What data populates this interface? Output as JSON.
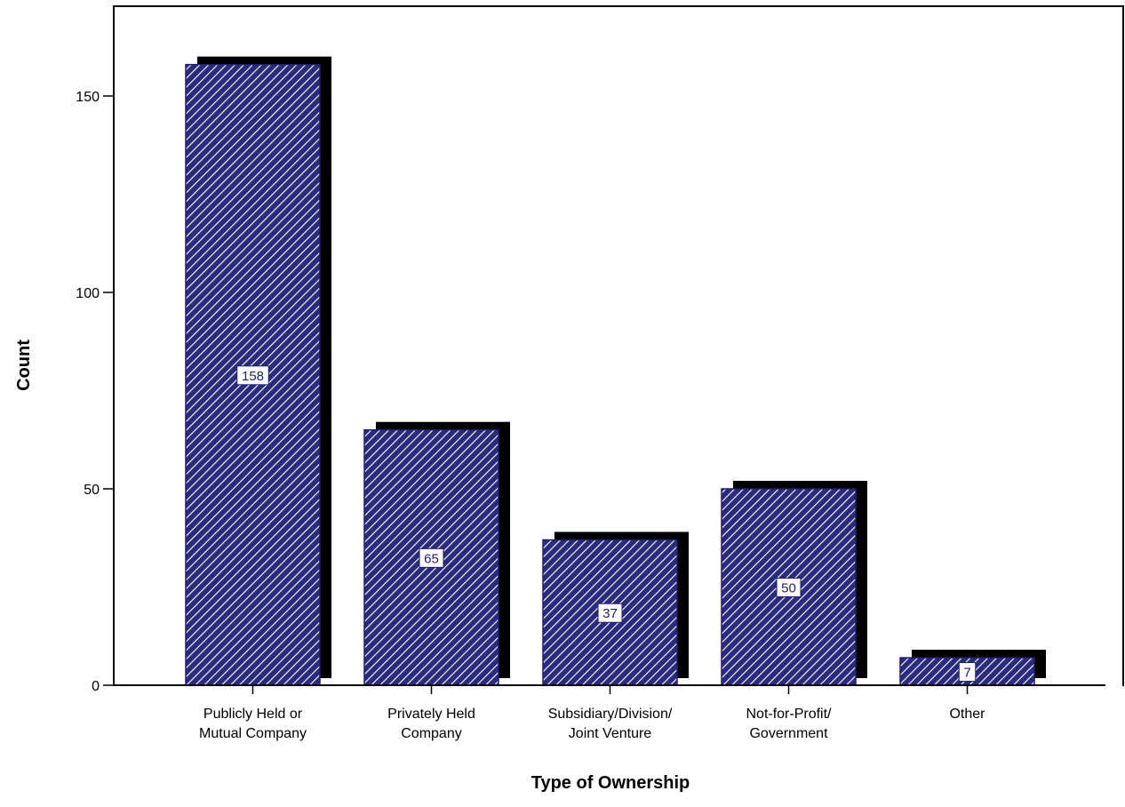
{
  "chart_data": {
    "type": "bar",
    "title": "",
    "xlabel": "Type of Ownership",
    "ylabel": "Count",
    "categories": [
      [
        "Publicly Held or",
        "Mutual Company"
      ],
      [
        "Privately Held",
        "Company"
      ],
      [
        "Subsidiary/Division/",
        "Joint Venture"
      ],
      [
        "Not-for-Profit/",
        "Government"
      ],
      [
        "Other"
      ]
    ],
    "values": [
      158,
      65,
      37,
      50,
      7
    ],
    "data_labels": [
      "158",
      "65",
      "37",
      "50",
      "7"
    ],
    "ylim": [
      0,
      172
    ],
    "yticks": [
      0,
      50,
      100,
      150
    ],
    "ytick_labels": [
      "0",
      "50",
      "100",
      "150"
    ],
    "grid": false,
    "legend": "none",
    "bar_color": "#2b2b7d",
    "hatch_color": "#ffffff",
    "shadow_color": "#000000"
  }
}
